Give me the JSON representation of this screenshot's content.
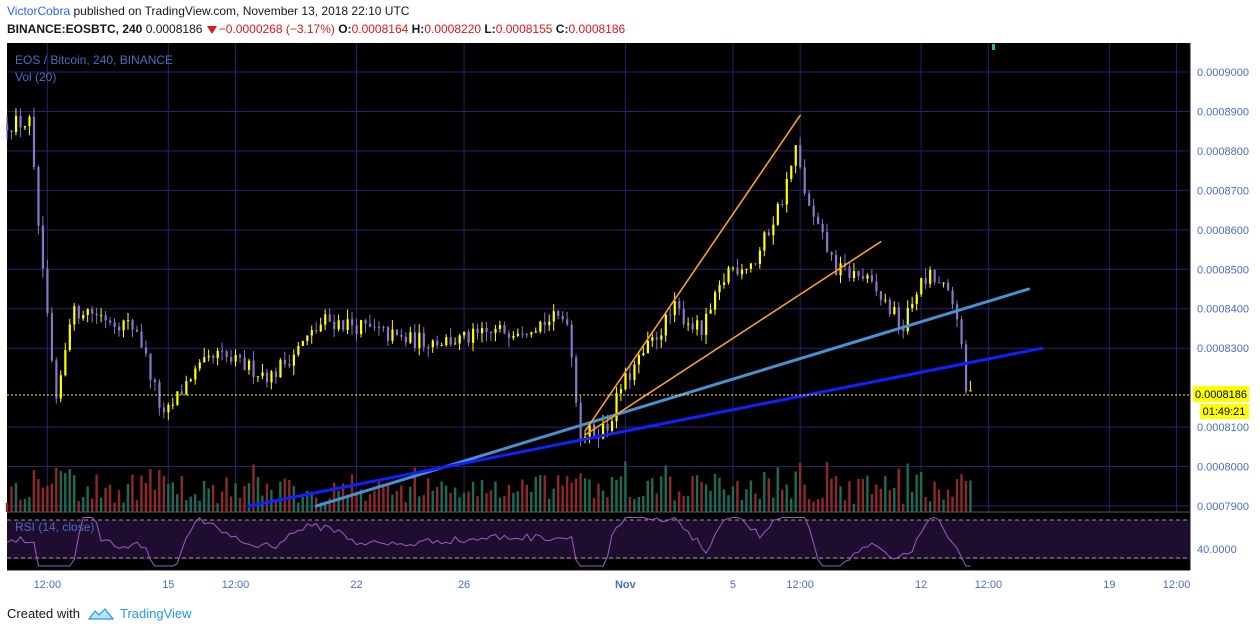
{
  "header": {
    "author": "VictorCobra",
    "published_text": "published on TradingView.com, November 13, 2018 22:10 UTC",
    "symbol": "BINANCE:EOSBTC, 240",
    "last": "0.0008186",
    "change": "−0.0000268 (−3.17%)",
    "o_label": "O:",
    "o_value": "0.0008164",
    "h_label": "H:",
    "h_value": "0.0008220",
    "l_label": "L:",
    "l_value": "0.0008155",
    "c_label": "C:",
    "c_value": "0.0008186"
  },
  "legend": {
    "series": "EOS / Bitcoin, 240, BINANCE",
    "volume": "Vol (20)",
    "rsi": "RSI (14, close)"
  },
  "price_axis": {
    "ticks": [
      "0.0009000",
      "0.0008900",
      "0.0008800",
      "0.0008700",
      "0.0008600",
      "0.0008500",
      "0.0008400",
      "0.0008300",
      "0.0008100",
      "0.0008000",
      "0.0007900"
    ],
    "current_price": "0.0008186",
    "countdown": "01:49:21"
  },
  "rsi_axis": {
    "tick": "40.0000"
  },
  "time_axis": {
    "labels": [
      "12:00",
      "15",
      "12:00",
      "22",
      "26",
      "Nov",
      "5",
      "12:00",
      "12",
      "12:00",
      "19",
      "12:00"
    ]
  },
  "footer": {
    "created_with": "Created with",
    "brand": "TradingView"
  },
  "colors": {
    "background": "#000000",
    "grid": "#2a1f6e",
    "candle_up": "#ffff00",
    "candle_down": "#8c74c7",
    "vol_up": "#1e6b55",
    "vol_down": "#8c2a2a",
    "trend_light": "#4a90d0",
    "trend_dark": "#1020ff",
    "wedge": "#ff9e1f",
    "rsi_line": "#a05ac8",
    "price_label": "#ffff00"
  },
  "chart_data": {
    "type": "candlestick",
    "title": "EOS / Bitcoin, 240, BINANCE",
    "ylim": [
      0.00078975,
      0.00091
    ],
    "x_range": [
      "2018-10-09",
      "2018-11-22"
    ],
    "approx_close_path": [
      {
        "x": "2018-10-09",
        "y": 0.000887
      },
      {
        "x": "2018-10-10",
        "y": 0.000887
      },
      {
        "x": "2018-10-10T12:00",
        "y": 0.000848
      },
      {
        "x": "2018-10-11",
        "y": 0.000815
      },
      {
        "x": "2018-10-11T12:00",
        "y": 0.000838
      },
      {
        "x": "2018-10-12",
        "y": 0.00084
      },
      {
        "x": "2018-10-14",
        "y": 0.000835
      },
      {
        "x": "2018-10-15",
        "y": 0.000812
      },
      {
        "x": "2018-10-16",
        "y": 0.000823
      },
      {
        "x": "2018-10-17",
        "y": 0.000828
      },
      {
        "x": "2018-10-19",
        "y": 0.000823
      },
      {
        "x": "2018-10-21",
        "y": 0.000837
      },
      {
        "x": "2018-10-22",
        "y": 0.000836
      },
      {
        "x": "2018-10-24",
        "y": 0.000832
      },
      {
        "x": "2018-10-26",
        "y": 0.000832
      },
      {
        "x": "2018-10-28",
        "y": 0.000835
      },
      {
        "x": "2018-10-30",
        "y": 0.000838
      },
      {
        "x": "2018-10-30T12:00",
        "y": 0.000808
      },
      {
        "x": "2018-10-31T12:00",
        "y": 0.00081
      },
      {
        "x": "2018-11-01",
        "y": 0.00082
      },
      {
        "x": "2018-11-02",
        "y": 0.00083
      },
      {
        "x": "2018-11-03",
        "y": 0.00084
      },
      {
        "x": "2018-11-04",
        "y": 0.000834
      },
      {
        "x": "2018-11-05",
        "y": 0.00085
      },
      {
        "x": "2018-11-06",
        "y": 0.000852
      },
      {
        "x": "2018-11-07",
        "y": 0.000868
      },
      {
        "x": "2018-11-07T12:00",
        "y": 0.00088
      },
      {
        "x": "2018-11-08",
        "y": 0.000865
      },
      {
        "x": "2018-11-09",
        "y": 0.00085
      },
      {
        "x": "2018-11-10",
        "y": 0.000848
      },
      {
        "x": "2018-11-11",
        "y": 0.00084
      },
      {
        "x": "2018-11-11T12:00",
        "y": 0.000835
      },
      {
        "x": "2018-11-12",
        "y": 0.000845
      },
      {
        "x": "2018-11-12T12:00",
        "y": 0.000848
      },
      {
        "x": "2018-11-13",
        "y": 0.000845
      },
      {
        "x": "2018-11-13T12:00",
        "y": 0.000839
      },
      {
        "x": "2018-11-13T20:00",
        "y": 0.0008186
      }
    ],
    "trendlines": [
      {
        "color": "light-blue",
        "from": {
          "x": "2018-10-20T12:00",
          "y": 0.00079
        },
        "to": {
          "x": "2018-11-16",
          "y": 0.000845
        }
      },
      {
        "color": "blue",
        "from": {
          "x": "2018-10-18",
          "y": 0.00079
        },
        "to": {
          "x": "2018-11-16T12:00",
          "y": 0.00083
        }
      },
      {
        "color": "orange",
        "from": {
          "x": "2018-10-30T12:00",
          "y": 0.000809
        },
        "to": {
          "x": "2018-11-07T12:00",
          "y": 0.000889
        }
      },
      {
        "color": "orange",
        "from": {
          "x": "2018-10-30T12:00",
          "y": 0.000808
        },
        "to": {
          "x": "2018-11-10T12:00",
          "y": 0.000857
        }
      }
    ],
    "current_price": 0.0008186,
    "rsi_reference": 40
  }
}
